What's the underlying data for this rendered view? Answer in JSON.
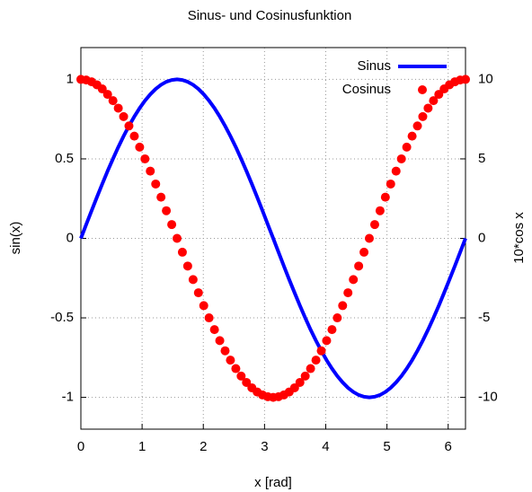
{
  "chart_data": {
    "type": "line",
    "title": "Sinus- und Cosinusfunktion",
    "x_label": "x [rad]",
    "y_label": "sin(x)",
    "y2_label": "10*cos x",
    "x": [
      0,
      0.087,
      0.175,
      0.262,
      0.349,
      0.436,
      0.524,
      0.611,
      0.698,
      0.785,
      0.873,
      0.96,
      1.047,
      1.134,
      1.222,
      1.309,
      1.396,
      1.484,
      1.571,
      1.658,
      1.745,
      1.833,
      1.92,
      2.007,
      2.094,
      2.182,
      2.269,
      2.356,
      2.443,
      2.531,
      2.618,
      2.705,
      2.793,
      2.88,
      2.967,
      3.054,
      3.142,
      3.229,
      3.316,
      3.403,
      3.491,
      3.578,
      3.665,
      3.752,
      3.84,
      3.927,
      4.014,
      4.102,
      4.189,
      4.276,
      4.363,
      4.451,
      4.538,
      4.625,
      4.712,
      4.8,
      4.887,
      4.974,
      5.061,
      5.149,
      5.236,
      5.323,
      5.411,
      5.498,
      5.585,
      5.672,
      5.76,
      5.847,
      5.934,
      6.021,
      6.109,
      6.196,
      6.283
    ],
    "series": [
      {
        "name": "Sinus",
        "color": "#0000ff",
        "style": "line",
        "axis": "y",
        "values": [
          0,
          0.087,
          0.174,
          0.259,
          0.342,
          0.423,
          0.5,
          0.574,
          0.643,
          0.707,
          0.766,
          0.819,
          0.866,
          0.906,
          0.94,
          0.966,
          0.985,
          0.996,
          1,
          0.996,
          0.985,
          0.966,
          0.94,
          0.906,
          0.866,
          0.819,
          0.766,
          0.707,
          0.643,
          0.574,
          0.5,
          0.423,
          0.342,
          0.259,
          0.174,
          0.087,
          0,
          -0.087,
          -0.174,
          -0.259,
          -0.342,
          -0.423,
          -0.5,
          -0.574,
          -0.643,
          -0.707,
          -0.766,
          -0.819,
          -0.866,
          -0.906,
          -0.94,
          -0.966,
          -0.985,
          -0.996,
          -1,
          -0.996,
          -0.985,
          -0.966,
          -0.94,
          -0.906,
          -0.866,
          -0.819,
          -0.766,
          -0.707,
          -0.643,
          -0.574,
          -0.5,
          -0.423,
          -0.342,
          -0.259,
          -0.174,
          -0.087,
          0
        ]
      },
      {
        "name": "Cosinus",
        "color": "#ff0000",
        "style": "points",
        "axis": "y2",
        "values": [
          10,
          9.96,
          9.85,
          9.66,
          9.4,
          9.06,
          8.66,
          8.19,
          7.66,
          7.07,
          6.43,
          5.74,
          5,
          4.23,
          3.42,
          2.59,
          1.74,
          0.87,
          0,
          -0.87,
          -1.74,
          -2.59,
          -3.42,
          -4.23,
          -5,
          -5.74,
          -6.43,
          -7.07,
          -7.66,
          -8.19,
          -8.66,
          -9.06,
          -9.4,
          -9.66,
          -9.85,
          -9.96,
          -10,
          -9.96,
          -9.85,
          -9.66,
          -9.4,
          -9.06,
          -8.66,
          -8.19,
          -7.66,
          -7.07,
          -6.43,
          -5.74,
          -5,
          -4.23,
          -3.42,
          -2.59,
          -1.74,
          -0.87,
          0,
          0.87,
          1.74,
          2.59,
          3.42,
          4.23,
          5,
          5.74,
          6.43,
          7.07,
          7.66,
          8.19,
          8.66,
          9.06,
          9.4,
          9.66,
          9.85,
          9.96,
          10
        ]
      }
    ],
    "xlim": [
      0,
      6.283
    ],
    "xticks": [
      0,
      1,
      2,
      3,
      4,
      5,
      6
    ],
    "ylim": [
      -1.2,
      1.2
    ],
    "yticks": [
      -1,
      -0.5,
      0,
      0.5,
      1
    ],
    "y2lim": [
      -12,
      12
    ],
    "y2ticks": [
      -10,
      -5,
      0,
      5,
      10
    ],
    "grid": true,
    "legend": "top right"
  }
}
